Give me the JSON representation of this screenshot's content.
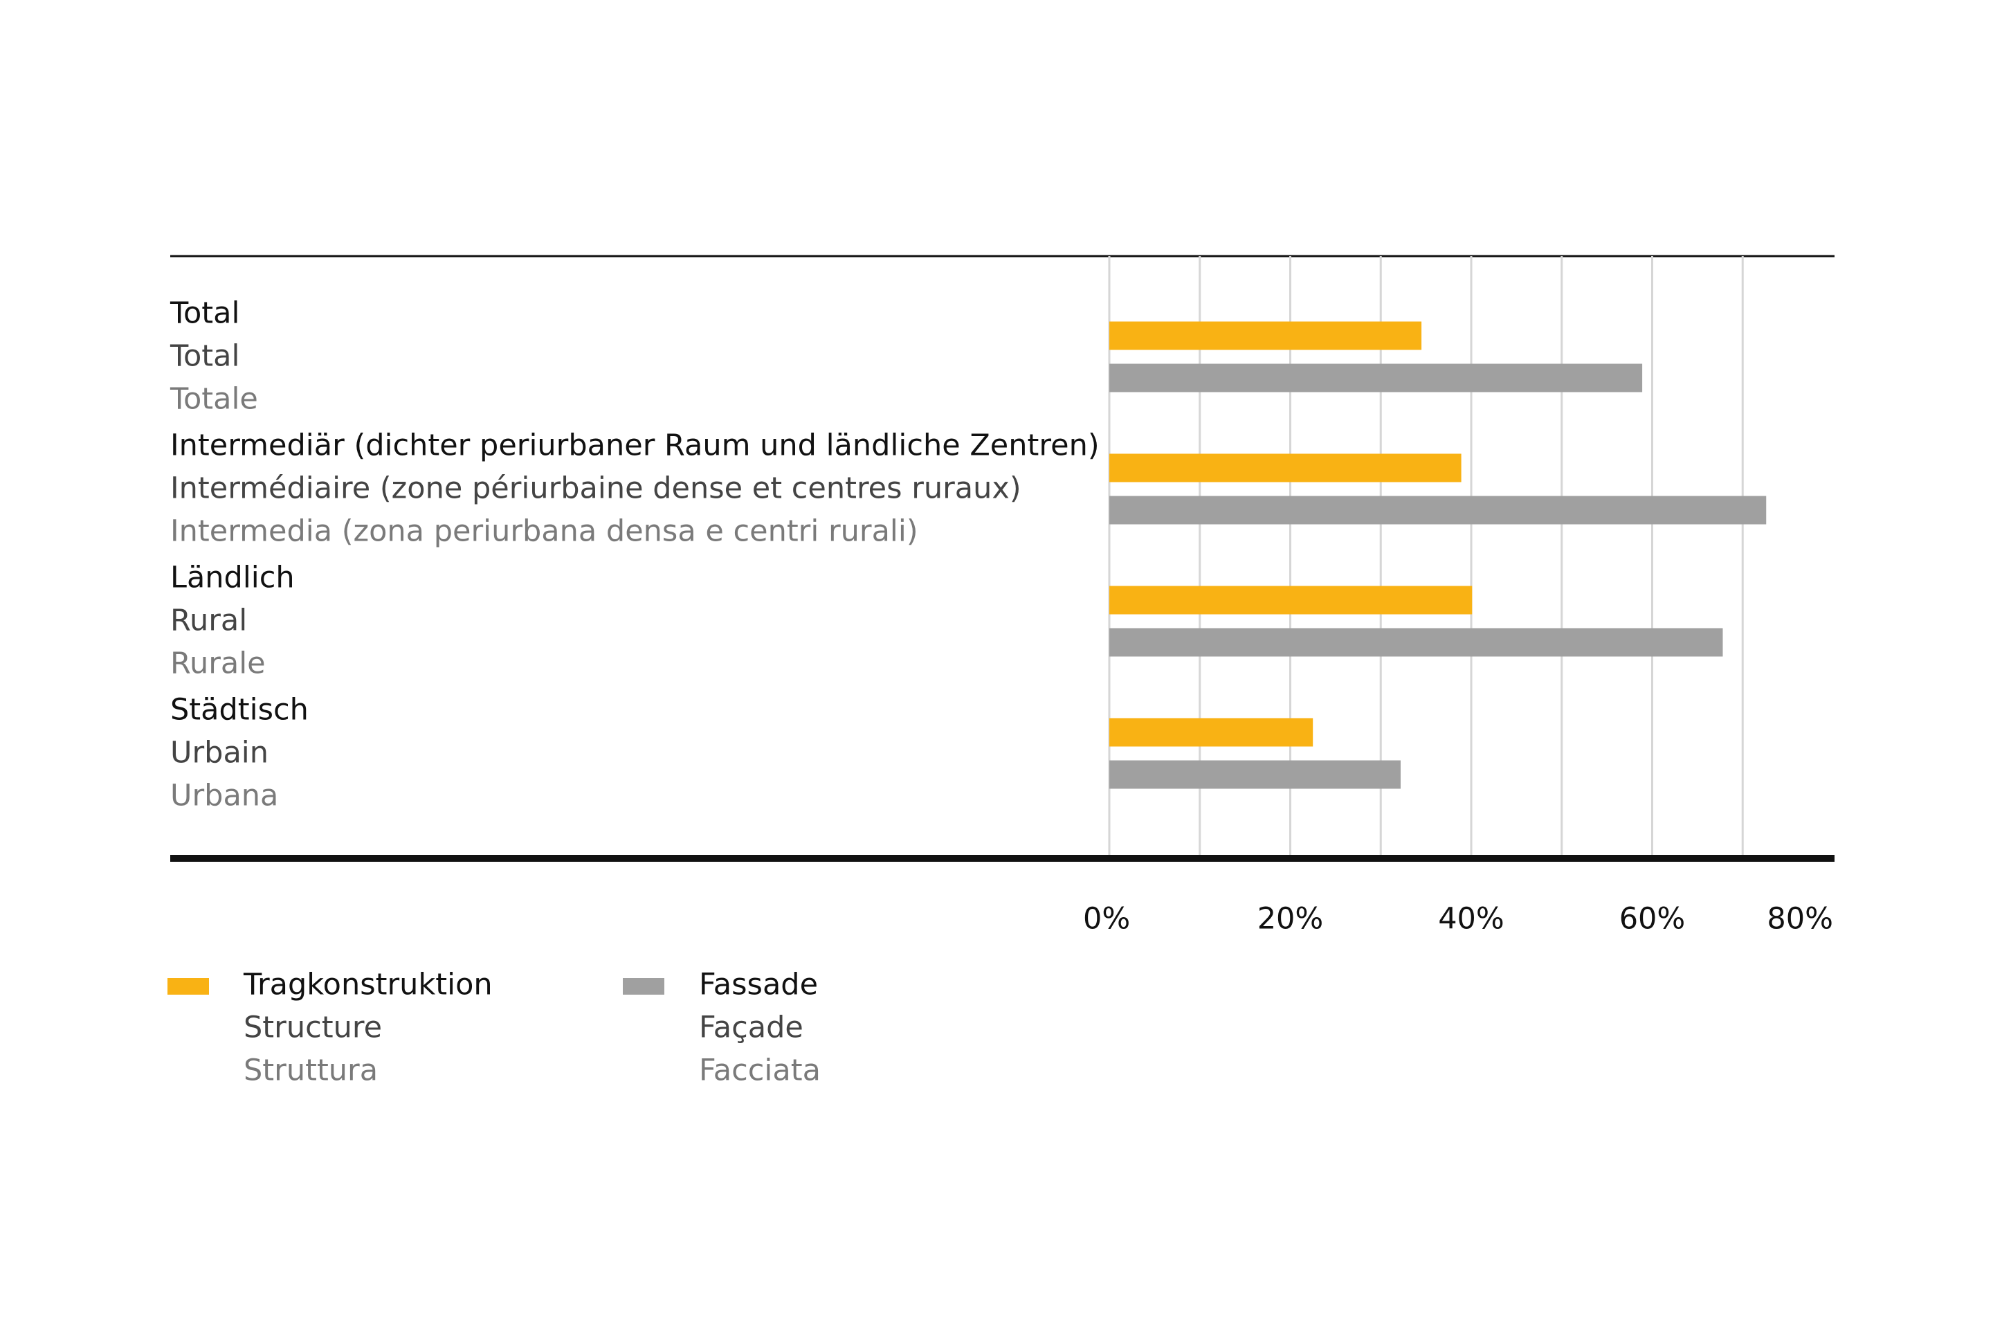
{
  "chart_data": {
    "type": "hbar",
    "categories": [
      [
        "Total",
        "Total",
        "Totale"
      ],
      [
        "Intermediär (dichter periurbaner Raum und ländliche Zentren)",
        "Intermédiaire (zone périurbaine dense et centres ruraux)",
        "Intermedia (zona periurbana densa e centri rurali)"
      ],
      [
        "Ländlich",
        "Rural",
        "Rurale"
      ],
      [
        "Städtisch",
        "Urbain",
        "Urbana"
      ]
    ],
    "series": [
      {
        "name": [
          "Tragkonstruktion",
          "Structure",
          "Struttura"
        ],
        "color": "#f9b214",
        "values": [
          34.5,
          38.9,
          40.1,
          22.5
        ]
      },
      {
        "name": [
          "Fassade",
          "Façade",
          "Facciata"
        ],
        "color": "#a0a0a0",
        "values": [
          58.9,
          72.6,
          67.8,
          32.2
        ]
      }
    ],
    "xlim": [
      0,
      80
    ],
    "xticks": [
      {
        "value": 0,
        "label": "0%"
      },
      {
        "value": 20,
        "label": "20%"
      },
      {
        "value": 40,
        "label": "40%"
      },
      {
        "value": 60,
        "label": "60%"
      },
      {
        "value": 80,
        "label": "80%"
      }
    ],
    "xgrid": [
      0,
      10,
      20,
      30,
      40,
      50,
      60,
      70
    ],
    "grid": true
  }
}
